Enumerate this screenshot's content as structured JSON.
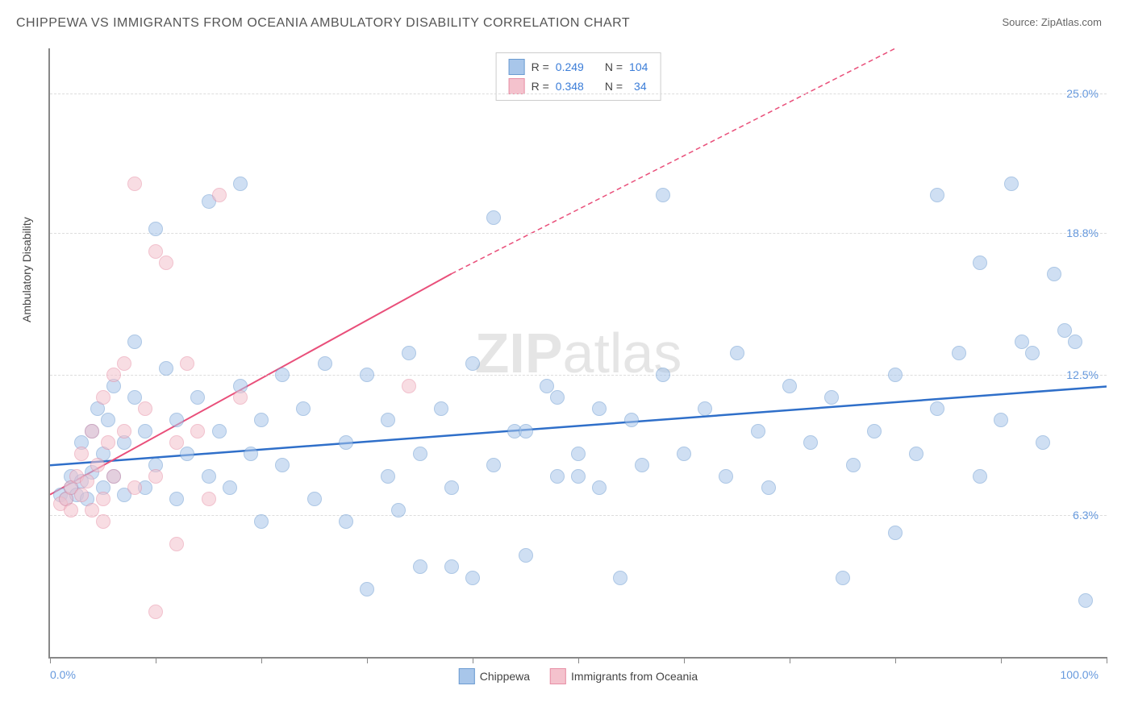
{
  "title": "CHIPPEWA VS IMMIGRANTS FROM OCEANIA AMBULATORY DISABILITY CORRELATION CHART",
  "source_prefix": "Source: ",
  "source_name": "ZipAtlas.com",
  "y_axis_label": "Ambulatory Disability",
  "watermark_part1": "ZIP",
  "watermark_part2": "atlas",
  "chart": {
    "type": "scatter",
    "xlim": [
      0,
      100
    ],
    "ylim": [
      0,
      27
    ],
    "x_ticks": [
      0,
      10,
      20,
      30,
      40,
      50,
      60,
      70,
      80,
      90,
      100
    ],
    "x_label_min": "0.0%",
    "x_label_max": "100.0%",
    "y_gridlines": [
      {
        "value": 6.3,
        "label": "6.3%"
      },
      {
        "value": 12.5,
        "label": "12.5%"
      },
      {
        "value": 18.8,
        "label": "18.8%"
      },
      {
        "value": 25.0,
        "label": "25.0%"
      }
    ],
    "background_color": "#ffffff",
    "grid_color": "#dddddd",
    "axis_color": "#888888",
    "marker_radius": 8,
    "marker_opacity": 0.55,
    "series": [
      {
        "name": "Chippewa",
        "fill_color": "#a8c6ea",
        "stroke_color": "#6b9bd1",
        "trend": {
          "x1": 0,
          "y1": 8.5,
          "x2": 100,
          "y2": 12.0,
          "stroke": "#2f6fc9",
          "width": 2.5,
          "dash": "none"
        },
        "R_label": "R = ",
        "R_value": "0.249",
        "N_label": "N = ",
        "N_value": "104",
        "points": [
          {
            "x": 1,
            "y": 7.2
          },
          {
            "x": 1.5,
            "y": 7.0
          },
          {
            "x": 2,
            "y": 7.5
          },
          {
            "x": 2,
            "y": 8.0
          },
          {
            "x": 2.5,
            "y": 7.2
          },
          {
            "x": 3,
            "y": 7.8
          },
          {
            "x": 3,
            "y": 9.5
          },
          {
            "x": 3.5,
            "y": 7.0
          },
          {
            "x": 4,
            "y": 8.2
          },
          {
            "x": 4,
            "y": 10.0
          },
          {
            "x": 4.5,
            "y": 11.0
          },
          {
            "x": 5,
            "y": 7.5
          },
          {
            "x": 5,
            "y": 9.0
          },
          {
            "x": 5.5,
            "y": 10.5
          },
          {
            "x": 6,
            "y": 8.0
          },
          {
            "x": 6,
            "y": 12.0
          },
          {
            "x": 7,
            "y": 7.2
          },
          {
            "x": 7,
            "y": 9.5
          },
          {
            "x": 8,
            "y": 11.5
          },
          {
            "x": 8,
            "y": 14.0
          },
          {
            "x": 9,
            "y": 7.5
          },
          {
            "x": 9,
            "y": 10.0
          },
          {
            "x": 10,
            "y": 8.5
          },
          {
            "x": 10,
            "y": 19.0
          },
          {
            "x": 11,
            "y": 12.8
          },
          {
            "x": 12,
            "y": 7.0
          },
          {
            "x": 12,
            "y": 10.5
          },
          {
            "x": 13,
            "y": 9.0
          },
          {
            "x": 14,
            "y": 11.5
          },
          {
            "x": 15,
            "y": 8.0
          },
          {
            "x": 15,
            "y": 20.2
          },
          {
            "x": 16,
            "y": 10.0
          },
          {
            "x": 17,
            "y": 7.5
          },
          {
            "x": 18,
            "y": 12.0
          },
          {
            "x": 18,
            "y": 21.0
          },
          {
            "x": 19,
            "y": 9.0
          },
          {
            "x": 20,
            "y": 6.0
          },
          {
            "x": 20,
            "y": 10.5
          },
          {
            "x": 22,
            "y": 12.5
          },
          {
            "x": 22,
            "y": 8.5
          },
          {
            "x": 24,
            "y": 11.0
          },
          {
            "x": 25,
            "y": 7.0
          },
          {
            "x": 26,
            "y": 13.0
          },
          {
            "x": 28,
            "y": 9.5
          },
          {
            "x": 28,
            "y": 6.0
          },
          {
            "x": 30,
            "y": 12.5
          },
          {
            "x": 30,
            "y": 3.0
          },
          {
            "x": 32,
            "y": 8.0
          },
          {
            "x": 32,
            "y": 10.5
          },
          {
            "x": 33,
            "y": 6.5
          },
          {
            "x": 34,
            "y": 13.5
          },
          {
            "x": 35,
            "y": 4.0
          },
          {
            "x": 35,
            "y": 9.0
          },
          {
            "x": 37,
            "y": 11.0
          },
          {
            "x": 38,
            "y": 4.0
          },
          {
            "x": 38,
            "y": 7.5
          },
          {
            "x": 40,
            "y": 13.0
          },
          {
            "x": 40,
            "y": 3.5
          },
          {
            "x": 42,
            "y": 8.5
          },
          {
            "x": 42,
            "y": 19.5
          },
          {
            "x": 44,
            "y": 10.0
          },
          {
            "x": 45,
            "y": 10.0
          },
          {
            "x": 45,
            "y": 4.5
          },
          {
            "x": 47,
            "y": 12.0
          },
          {
            "x": 48,
            "y": 8.0
          },
          {
            "x": 48,
            "y": 11.5
          },
          {
            "x": 50,
            "y": 9.0
          },
          {
            "x": 50,
            "y": 8.0
          },
          {
            "x": 52,
            "y": 11.0
          },
          {
            "x": 52,
            "y": 7.5
          },
          {
            "x": 54,
            "y": 3.5
          },
          {
            "x": 55,
            "y": 10.5
          },
          {
            "x": 56,
            "y": 8.5
          },
          {
            "x": 58,
            "y": 12.5
          },
          {
            "x": 58,
            "y": 20.5
          },
          {
            "x": 60,
            "y": 9.0
          },
          {
            "x": 62,
            "y": 11.0
          },
          {
            "x": 64,
            "y": 8.0
          },
          {
            "x": 65,
            "y": 13.5
          },
          {
            "x": 67,
            "y": 10.0
          },
          {
            "x": 68,
            "y": 7.5
          },
          {
            "x": 70,
            "y": 12.0
          },
          {
            "x": 72,
            "y": 9.5
          },
          {
            "x": 74,
            "y": 11.5
          },
          {
            "x": 75,
            "y": 3.5
          },
          {
            "x": 76,
            "y": 8.5
          },
          {
            "x": 78,
            "y": 10.0
          },
          {
            "x": 80,
            "y": 5.5
          },
          {
            "x": 80,
            "y": 12.5
          },
          {
            "x": 82,
            "y": 9.0
          },
          {
            "x": 84,
            "y": 11.0
          },
          {
            "x": 84,
            "y": 20.5
          },
          {
            "x": 86,
            "y": 13.5
          },
          {
            "x": 88,
            "y": 8.0
          },
          {
            "x": 88,
            "y": 17.5
          },
          {
            "x": 90,
            "y": 10.5
          },
          {
            "x": 91,
            "y": 21.0
          },
          {
            "x": 92,
            "y": 14.0
          },
          {
            "x": 93,
            "y": 13.5
          },
          {
            "x": 94,
            "y": 9.5
          },
          {
            "x": 95,
            "y": 17.0
          },
          {
            "x": 96,
            "y": 14.5
          },
          {
            "x": 97,
            "y": 14.0
          },
          {
            "x": 98,
            "y": 2.5
          }
        ]
      },
      {
        "name": "Immigrants from Oceania",
        "fill_color": "#f4c2cd",
        "stroke_color": "#e78fa5",
        "trend": {
          "x1": 0,
          "y1": 7.2,
          "x2": 38,
          "y2": 17.0,
          "stroke": "#e94f7a",
          "width": 2,
          "dash": "none",
          "extend_x2": 80,
          "extend_y2": 27.0,
          "extend_dash": "6,4"
        },
        "R_label": "R = ",
        "R_value": "0.348",
        "N_label": "N = ",
        "N_value": "34",
        "points": [
          {
            "x": 1,
            "y": 6.8
          },
          {
            "x": 1.5,
            "y": 7.0
          },
          {
            "x": 2,
            "y": 7.5
          },
          {
            "x": 2,
            "y": 6.5
          },
          {
            "x": 2.5,
            "y": 8.0
          },
          {
            "x": 3,
            "y": 7.2
          },
          {
            "x": 3,
            "y": 9.0
          },
          {
            "x": 3.5,
            "y": 7.8
          },
          {
            "x": 4,
            "y": 10.0
          },
          {
            "x": 4,
            "y": 6.5
          },
          {
            "x": 4.5,
            "y": 8.5
          },
          {
            "x": 5,
            "y": 11.5
          },
          {
            "x": 5,
            "y": 7.0
          },
          {
            "x": 5.5,
            "y": 9.5
          },
          {
            "x": 6,
            "y": 12.5
          },
          {
            "x": 6,
            "y": 8.0
          },
          {
            "x": 7,
            "y": 10.0
          },
          {
            "x": 7,
            "y": 13.0
          },
          {
            "x": 8,
            "y": 7.5
          },
          {
            "x": 8,
            "y": 21.0
          },
          {
            "x": 9,
            "y": 11.0
          },
          {
            "x": 10,
            "y": 8.0
          },
          {
            "x": 10,
            "y": 18.0
          },
          {
            "x": 11,
            "y": 17.5
          },
          {
            "x": 12,
            "y": 9.5
          },
          {
            "x": 12,
            "y": 5.0
          },
          {
            "x": 13,
            "y": 13.0
          },
          {
            "x": 14,
            "y": 10.0
          },
          {
            "x": 15,
            "y": 7.0
          },
          {
            "x": 16,
            "y": 20.5
          },
          {
            "x": 18,
            "y": 11.5
          },
          {
            "x": 10,
            "y": 2.0
          },
          {
            "x": 5,
            "y": 6.0
          },
          {
            "x": 34,
            "y": 12.0
          }
        ]
      }
    ]
  },
  "legend_bottom": [
    {
      "label": "Chippewa",
      "fill": "#a8c6ea",
      "stroke": "#6b9bd1"
    },
    {
      "label": "Immigrants from Oceania",
      "fill": "#f4c2cd",
      "stroke": "#e78fa5"
    }
  ]
}
